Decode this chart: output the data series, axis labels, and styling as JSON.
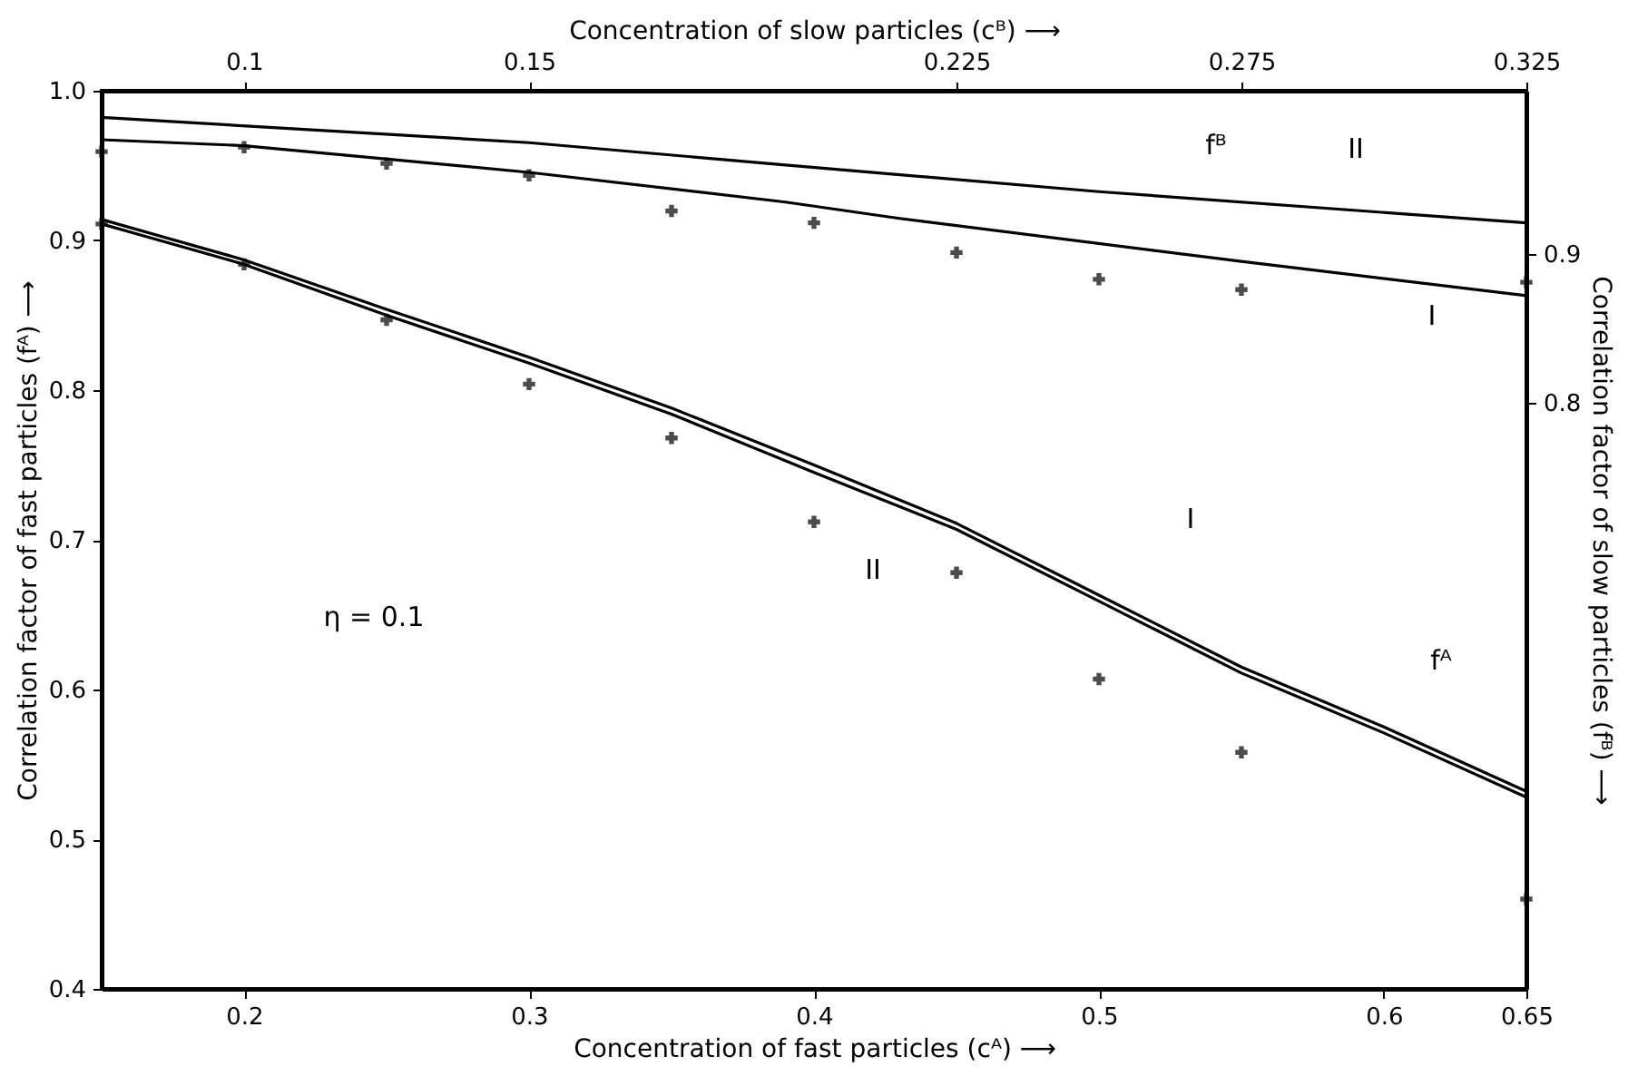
{
  "chart_data": {
    "type": "line",
    "xlabel": "Concentration of fast particles (cᴬ) ⟶",
    "x2label": "Concentration of slow particles (cᴮ) ⟶",
    "ylabel": "Correlation factor of fast particles (fᴬ) ⟶",
    "y2label": "Correlation factor of slow particles (fᴮ) ⟶",
    "xlim": [
      0.15,
      0.65
    ],
    "xticks": [
      0.2,
      0.3,
      0.4,
      0.5,
      0.6,
      0.65
    ],
    "x2lim": [
      0.075,
      0.325
    ],
    "x2ticks": [
      0.1,
      0.15,
      0.225,
      0.275,
      0.325
    ],
    "ylim": [
      0.4,
      1.0
    ],
    "yticks": [
      0.4,
      0.5,
      0.6,
      0.7,
      0.8,
      0.9,
      {
        "value": 1.0,
        "label": "1.0"
      }
    ],
    "y2lim": [
      0.405,
      1.01
    ],
    "y2ticks": [
      0.8,
      0.9
    ],
    "grid": false,
    "series": [
      {
        "color": "#000000",
        "marker": "none",
        "line_style": "solid",
        "x": [
          0.15,
          0.2,
          0.25,
          0.3,
          0.35,
          0.4,
          0.45,
          0.5,
          0.55,
          0.6,
          0.65
        ],
        "values": [
          0.911,
          0.884,
          0.85,
          0.818,
          0.784,
          0.745,
          0.707,
          0.659,
          0.611,
          0.571,
          0.528
        ]
      },
      {
        "color": "#000000",
        "marker": "none",
        "line_style": "solid",
        "x": [
          0.15,
          0.2,
          0.25,
          0.3,
          0.35,
          0.4,
          0.45,
          0.5,
          0.55,
          0.6,
          0.65
        ],
        "values": [
          0.914,
          0.887,
          0.854,
          0.822,
          0.788,
          0.75,
          0.711,
          0.663,
          0.615,
          0.575,
          0.532
        ]
      },
      {
        "type": "scatter",
        "color": "#000000",
        "marker": "cross",
        "x": [
          0.15,
          0.2,
          0.25,
          0.3,
          0.35,
          0.4,
          0.45,
          0.5,
          0.55,
          0.65
        ],
        "values": [
          0.911,
          0.884,
          0.847,
          0.804,
          0.768,
          0.712,
          0.678,
          0.607,
          0.558,
          0.46
        ]
      },
      {
        "axis": "y2",
        "color": "#000000",
        "marker": "none",
        "line_style": "solid",
        "x": [
          0.15,
          0.3,
          0.39,
          0.5,
          0.65
        ],
        "values": [
          0.992,
          0.975,
          0.96,
          0.942,
          0.921
        ]
      },
      {
        "axis": "y2",
        "color": "#000000",
        "marker": "none",
        "line_style": "solid",
        "x": [
          0.15,
          0.2,
          0.3,
          0.39,
          0.43,
          0.55,
          0.65
        ],
        "values": [
          0.977,
          0.973,
          0.955,
          0.935,
          0.924,
          0.895,
          0.872
        ]
      },
      {
        "type": "scatter",
        "axis": "y2",
        "color": "#000000",
        "marker": "cross",
        "x": [
          0.15,
          0.2,
          0.25,
          0.3,
          0.35,
          0.4,
          0.45,
          0.5,
          0.55,
          0.65
        ],
        "values": [
          0.969,
          0.972,
          0.961,
          0.953,
          0.929,
          0.921,
          0.901,
          0.883,
          0.876,
          0.881
        ]
      }
    ],
    "annotations": [
      "fᴮ",
      "II",
      "I",
      "II",
      "I",
      "fᴬ",
      "η = 0.1"
    ]
  }
}
